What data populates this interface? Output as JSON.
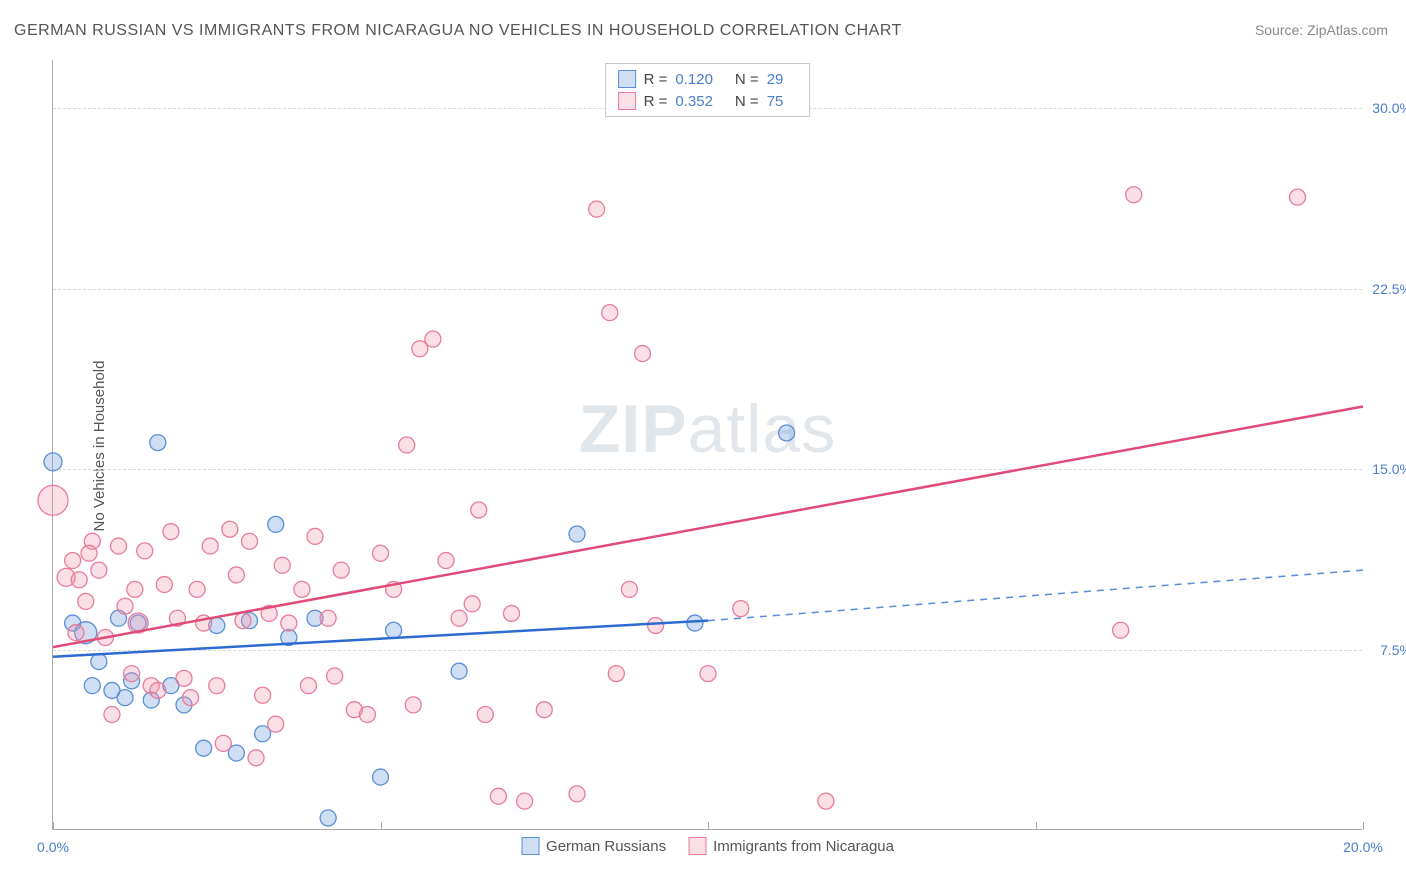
{
  "title": "GERMAN RUSSIAN VS IMMIGRANTS FROM NICARAGUA NO VEHICLES IN HOUSEHOLD CORRELATION CHART",
  "source": "Source: ZipAtlas.com",
  "ylabel": "No Vehicles in Household",
  "watermark_bold": "ZIP",
  "watermark_rest": "atlas",
  "chart": {
    "type": "scatter-correlation",
    "background_color": "#ffffff",
    "grid_color": "#d8d8d8",
    "axis_color": "#aaaaaa",
    "tick_label_color": "#4a7ec9",
    "xlim": [
      0,
      20
    ],
    "ylim": [
      0,
      32
    ],
    "xticks": [
      0,
      5,
      10,
      15,
      20
    ],
    "xtick_labels": [
      "0.0%",
      "",
      "",
      "",
      "20.0%"
    ],
    "yticks": [
      7.5,
      15.0,
      22.5,
      30.0
    ],
    "ytick_labels": [
      "7.5%",
      "15.0%",
      "22.5%",
      "30.0%"
    ],
    "series": [
      {
        "name": "German Russians",
        "marker_fill": "rgba(120,160,220,0.35)",
        "marker_stroke": "#5b8fd6",
        "line_color": "#2e6bd0",
        "dash_color": "#5b8fd6",
        "R": "0.120",
        "N": "29",
        "trend": {
          "x1": 0,
          "y1": 7.2,
          "x2": 10,
          "y2": 8.7,
          "ext_x2": 20,
          "ext_y2": 10.8
        },
        "points": [
          [
            0.0,
            15.3,
            9
          ],
          [
            0.3,
            8.6,
            8
          ],
          [
            0.5,
            8.2,
            11
          ],
          [
            0.6,
            6.0,
            8
          ],
          [
            0.7,
            7.0,
            8
          ],
          [
            0.9,
            5.8,
            8
          ],
          [
            1.0,
            8.8,
            8
          ],
          [
            1.1,
            5.5,
            8
          ],
          [
            1.2,
            6.2,
            8
          ],
          [
            1.3,
            8.6,
            8
          ],
          [
            1.5,
            5.4,
            8
          ],
          [
            1.6,
            16.1,
            8
          ],
          [
            1.8,
            6.0,
            8
          ],
          [
            2.0,
            5.2,
            8
          ],
          [
            2.3,
            3.4,
            8
          ],
          [
            2.5,
            8.5,
            8
          ],
          [
            2.8,
            3.2,
            8
          ],
          [
            3.0,
            8.7,
            8
          ],
          [
            3.2,
            4.0,
            8
          ],
          [
            3.4,
            12.7,
            8
          ],
          [
            3.6,
            8.0,
            8
          ],
          [
            4.0,
            8.8,
            8
          ],
          [
            4.2,
            0.5,
            8
          ],
          [
            5.0,
            2.2,
            8
          ],
          [
            5.2,
            8.3,
            8
          ],
          [
            6.2,
            6.6,
            8
          ],
          [
            8.0,
            12.3,
            8
          ],
          [
            9.8,
            8.6,
            8
          ],
          [
            11.2,
            16.5,
            8
          ]
        ]
      },
      {
        "name": "Immigrants from Nicaragua",
        "marker_fill": "rgba(240,150,175,0.30)",
        "marker_stroke": "#e87b9a",
        "line_color": "#e14b78",
        "dash_color": "#e87b9a",
        "R": "0.352",
        "N": "75",
        "trend": {
          "x1": 0,
          "y1": 7.6,
          "x2": 20,
          "y2": 17.6,
          "ext_x2": 20,
          "ext_y2": 17.6
        },
        "points": [
          [
            0.0,
            13.7,
            15
          ],
          [
            0.2,
            10.5,
            9
          ],
          [
            0.3,
            11.2,
            8
          ],
          [
            0.4,
            10.4,
            8
          ],
          [
            0.5,
            9.5,
            8
          ],
          [
            0.6,
            12.0,
            8
          ],
          [
            0.7,
            10.8,
            8
          ],
          [
            0.8,
            8.0,
            8
          ],
          [
            0.9,
            4.8,
            8
          ],
          [
            1.0,
            11.8,
            8
          ],
          [
            1.1,
            9.3,
            8
          ],
          [
            1.2,
            6.5,
            8
          ],
          [
            1.3,
            8.6,
            10
          ],
          [
            1.4,
            11.6,
            8
          ],
          [
            1.5,
            6.0,
            8
          ],
          [
            1.6,
            5.8,
            8
          ],
          [
            1.8,
            12.4,
            8
          ],
          [
            1.9,
            8.8,
            8
          ],
          [
            2.0,
            6.3,
            8
          ],
          [
            2.1,
            5.5,
            8
          ],
          [
            2.2,
            10.0,
            8
          ],
          [
            2.3,
            8.6,
            8
          ],
          [
            2.4,
            11.8,
            8
          ],
          [
            2.5,
            6.0,
            8
          ],
          [
            2.6,
            3.6,
            8
          ],
          [
            2.8,
            10.6,
            8
          ],
          [
            2.9,
            8.7,
            8
          ],
          [
            3.0,
            12.0,
            8
          ],
          [
            3.1,
            3.0,
            8
          ],
          [
            3.2,
            5.6,
            8
          ],
          [
            3.4,
            4.4,
            8
          ],
          [
            3.5,
            11.0,
            8
          ],
          [
            3.6,
            8.6,
            8
          ],
          [
            3.8,
            10.0,
            8
          ],
          [
            3.9,
            6.0,
            8
          ],
          [
            4.0,
            12.2,
            8
          ],
          [
            4.2,
            8.8,
            8
          ],
          [
            4.4,
            10.8,
            8
          ],
          [
            4.6,
            5.0,
            8
          ],
          [
            4.8,
            4.8,
            8
          ],
          [
            5.0,
            11.5,
            8
          ],
          [
            5.2,
            10.0,
            8
          ],
          [
            5.4,
            16.0,
            8
          ],
          [
            5.5,
            5.2,
            8
          ],
          [
            5.8,
            20.4,
            8
          ],
          [
            6.0,
            11.2,
            8
          ],
          [
            6.2,
            8.8,
            8
          ],
          [
            6.4,
            9.4,
            8
          ],
          [
            6.6,
            4.8,
            8
          ],
          [
            6.8,
            1.4,
            8
          ],
          [
            7.0,
            9.0,
            8
          ],
          [
            7.2,
            1.2,
            8
          ],
          [
            7.5,
            5.0,
            8
          ],
          [
            8.0,
            1.5,
            8
          ],
          [
            8.3,
            25.8,
            8
          ],
          [
            8.5,
            21.5,
            8
          ],
          [
            8.6,
            6.5,
            8
          ],
          [
            8.8,
            10.0,
            8
          ],
          [
            9.0,
            19.8,
            8
          ],
          [
            9.2,
            8.5,
            8
          ],
          [
            10.0,
            6.5,
            8
          ],
          [
            10.5,
            9.2,
            8
          ],
          [
            11.8,
            1.2,
            8
          ],
          [
            16.3,
            8.3,
            8
          ],
          [
            16.5,
            26.4,
            8
          ],
          [
            19.0,
            26.3,
            8
          ],
          [
            4.3,
            6.4,
            8
          ],
          [
            1.7,
            10.2,
            8
          ],
          [
            2.7,
            12.5,
            8
          ],
          [
            3.3,
            9.0,
            8
          ],
          [
            0.35,
            8.2,
            8
          ],
          [
            0.55,
            11.5,
            8
          ],
          [
            1.25,
            10.0,
            8
          ],
          [
            5.6,
            20.0,
            8
          ],
          [
            6.5,
            13.3,
            8
          ]
        ]
      }
    ],
    "legend_bottom": [
      {
        "label": "German Russians",
        "fill": "rgba(120,160,220,0.35)",
        "stroke": "#5b8fd6"
      },
      {
        "label": "Immigrants from Nicaragua",
        "fill": "rgba(240,150,175,0.30)",
        "stroke": "#e87b9a"
      }
    ]
  }
}
